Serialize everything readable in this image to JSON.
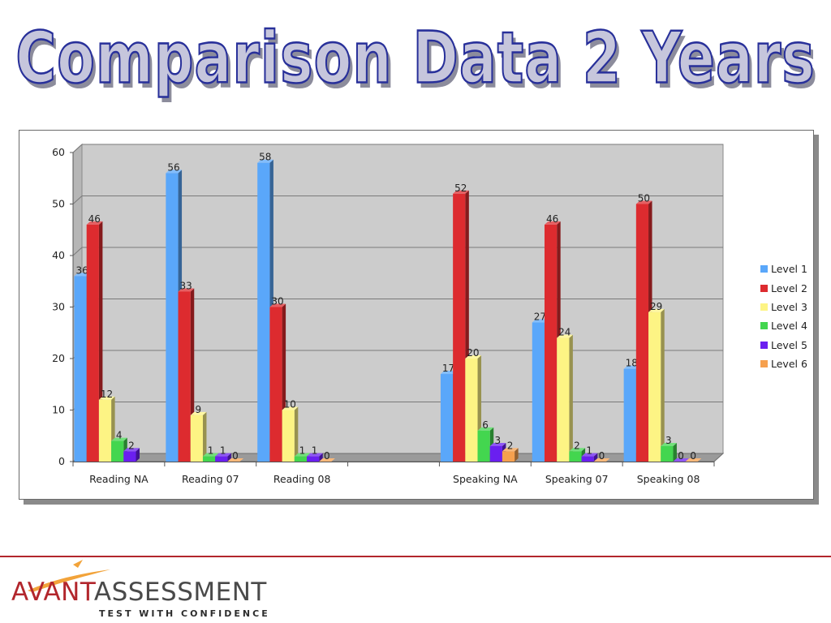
{
  "slide": {
    "title": "Comparison Data 2 Years"
  },
  "chart_data": {
    "type": "bar",
    "categories": [
      "Reading NA",
      "Reading 07",
      "Reading 08",
      "",
      "Speaking NA",
      "Speaking 07",
      "Speaking 08"
    ],
    "series": [
      {
        "name": "Level 1",
        "color": "#5aa7fa",
        "values": [
          36,
          56,
          58,
          null,
          17,
          27,
          18
        ]
      },
      {
        "name": "Level 2",
        "color": "#dd2b2f",
        "values": [
          46,
          33,
          30,
          null,
          52,
          46,
          50
        ]
      },
      {
        "name": "Level 3",
        "color": "#fdf484",
        "values": [
          12,
          9,
          10,
          null,
          20,
          24,
          29
        ]
      },
      {
        "name": "Level 4",
        "color": "#43d64f",
        "values": [
          4,
          1,
          1,
          null,
          6,
          2,
          3
        ]
      },
      {
        "name": "Level 5",
        "color": "#6a1ff0",
        "values": [
          2,
          1,
          1,
          null,
          3,
          1,
          0
        ]
      },
      {
        "name": "Level 6",
        "color": "#f6a04e",
        "values": [
          null,
          0,
          0,
          null,
          2,
          0,
          0
        ]
      }
    ],
    "ylim": [
      0,
      60
    ],
    "yticks": [
      0,
      10,
      20,
      30,
      40,
      50,
      60
    ],
    "grid": true,
    "legend_position": "right",
    "plot_background": "#cccccc"
  },
  "logo": {
    "word1": "AVANT",
    "word2": "ASSESSMENT",
    "tagline": "TEST WITH CONFIDENCE",
    "brand_color": "#b2262c",
    "accent_color": "#f2a33a"
  },
  "footer": {
    "rule_color": "#b2262c"
  }
}
